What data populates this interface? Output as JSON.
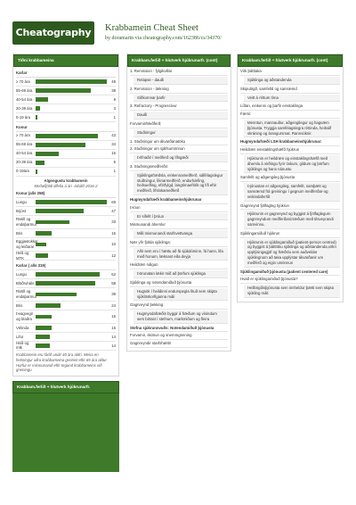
{
  "header": {
    "logo": "Cheatography",
    "title": "Krabbamein Cheat Sheet",
    "by": "by",
    "author": "doramarin",
    "via": "via",
    "url": "cheatography.com/162386/cs/34370/"
  },
  "col1": {
    "box1": {
      "head": "Tíðni krabbameina",
      "konur_title": "Karlar",
      "karlar": [
        {
          "label": "≥ 70 ára",
          "value": 49,
          "frac": 1.0
        },
        {
          "label": "55-69 ára",
          "value": 38,
          "frac": 0.78
        },
        {
          "label": "40-54 ára",
          "value": 9,
          "frac": 0.18
        },
        {
          "label": "20-39 ára",
          "value": 3,
          "frac": 0.06
        },
        {
          "label": "0-19 ára",
          "value": 1,
          "frac": 0.02
        }
      ],
      "konur_label": "Konur",
      "konur": [
        {
          "label": "≥ 70 ára",
          "value": 43,
          "frac": 0.88
        },
        {
          "label": "55-69 ára",
          "value": 34,
          "frac": 0.7
        },
        {
          "label": "40-54 ára",
          "value": 16,
          "frac": 0.33
        },
        {
          "label": "20-39 ára",
          "value": 6,
          "frac": 0.12
        },
        {
          "label": "0-19ára",
          "value": 1,
          "frac": 0.02
        }
      ],
      "algengustu": "Algengustu krabbamein",
      "algengustu_note": "Meðalfjöldi tilfella á ári -árbilið 2016-2",
      "konur_sub": "Konur (alls 258)",
      "konur_types": [
        {
          "label": "Lungu",
          "value": 69,
          "frac": 1.0,
          "tall": false
        },
        {
          "label": "Brjóst",
          "value": 47,
          "frac": 0.68,
          "tall": false
        },
        {
          "label": "Ristill og endaþarmur",
          "value": 33,
          "frac": 0.48,
          "tall": true
        },
        {
          "label": "Bris",
          "value": 15,
          "frac": 0.22,
          "tall": false
        },
        {
          "label": "Eggjastokkar og leiðarar",
          "value": 10,
          "frac": 0.15,
          "tall": true
        },
        {
          "label": "Heili og MTK",
          "value": 12,
          "frac": 0.17,
          "tall": false
        }
      ],
      "karlar_sub": "Karlar ( alls 319)",
      "karlar_types": [
        {
          "label": "Lungu",
          "value": 62,
          "frac": 0.9,
          "tall": false
        },
        {
          "label": "Blöðruháls",
          "value": 58,
          "frac": 0.84,
          "tall": false
        },
        {
          "label": "Ristill og endaþarmur",
          "value": 39,
          "frac": 0.57,
          "tall": true
        },
        {
          "label": "Bris",
          "value": 24,
          "frac": 0.35,
          "tall": false
        },
        {
          "label": "Þvagvegir og blaðra",
          "value": 16,
          "frac": 0.23,
          "tall": true
        },
        {
          "label": "Vélinda",
          "value": 15,
          "frac": 0.22,
          "tall": false
        },
        {
          "label": "Lifur",
          "value": 14,
          "frac": 0.2,
          "tall": false
        },
        {
          "label": "Heili og mtk",
          "value": 14,
          "frac": 0.2,
          "tall": false
        }
      ],
      "footnote": "Krabbamein eru fátíð undir 40 ára aldri. Meira en helmingur allra krabbameina greinist eftir 65 ára aldur. Horfur er mismunandi eftir tegund krabbameins við greiningu"
    },
    "box2": {
      "head": "Krabbam.ferlið + hlutverk hjúkrunarfr."
    }
  },
  "col2": {
    "head": "Krabbam.ferlið + hlutverk hjúkrunarfr. (cont)",
    "items": [
      {
        "t": "1. Remission - fylgikvillar",
        "k": "line"
      },
      {
        "t": "Relapse - dauði",
        "k": "ind"
      },
      {
        "t": "2. Remission - lækning",
        "k": "line"
      },
      {
        "t": "Síðkomnar þarfir",
        "k": "ind"
      },
      {
        "t": "3. Refractory - Progressívur",
        "k": "line"
      },
      {
        "t": "Dauði",
        "k": "ind"
      },
      {
        "t": "Forvarnir/Meðferð;",
        "k": "line"
      },
      {
        "t": "Stuðningur",
        "k": "ind"
      },
      {
        "t": "1. Stuðningur um ákvarðanatöku",
        "k": "line"
      },
      {
        "t": "2. Stuðningur um sjálfsumönnun",
        "k": "line"
      },
      {
        "t": "Þrifnaðir í meðferð og lífsgæði",
        "k": "ind"
      },
      {
        "t": "3. Stuðningsmeðferðir:",
        "k": "line"
      },
      {
        "t": "Sjúklingafræðsla, einkennameðferð, sálfélagslegur stuðningur, líknarmeðferð, endurhæfing, heilsuefling, eftirfylgd, langtímaeftirlit og lífi eftir meðferð, lífslokameðferð",
        "k": "ind"
      },
      {
        "t": "Hugmyndafræði krabbameinshjúkrunar",
        "k": "bold"
      },
      {
        "t": "Þróun",
        "k": "line"
      },
      {
        "t": "Er sífellt í þróun",
        "k": "ind"
      },
      {
        "t": "Mismunandi áherslur",
        "k": "line"
      },
      {
        "t": "Milli mismunandi starfsvettvanga",
        "k": "ind"
      },
      {
        "t": "Nær yfir fjölda sjúklinga:",
        "k": "line"
      },
      {
        "t": "Allir sem eru í hættu að fá sjúkdóminn, fá hann, lifa með honum, læknast eða deyja",
        "k": "ind"
      },
      {
        "t": "Heildræn nálgun",
        "k": "line"
      },
      {
        "t": "Þörunatan lækir mið að þörfum sjúklinga",
        "k": "ind"
      },
      {
        "t": "Sjúklinga og notendamiðuð þjónusta",
        "k": "line"
      },
      {
        "t": "Hugsök í heildinni endurspegla lítuð sem skipta sjúklöskorfiganna máli",
        "k": "ind"
      },
      {
        "t": "Gagnreynd þekking",
        "k": "line"
      },
      {
        "t": "Hugmyndafræðin byggir á fræðum og vísindum sem birtast í stefnum, markmiðum og fleira",
        "k": "ind"
      },
      {
        "t": "Stefna sjúkrunnvuðs: Notendamiðuð þjónusta",
        "k": "bold"
      },
      {
        "t": "Forvarnir, skimun og snemmgreining",
        "k": "line"
      },
      {
        "t": "Gagnreyndir starfshættir",
        "k": "line"
      }
    ]
  },
  "col3": {
    "head": "Krabbam.ferlið + hlutverk hjúkrunarfr. (cont)",
    "items": [
      {
        "t": "Virk þátttaka",
        "k": "line"
      },
      {
        "t": "Sjúklinga og aðstandenda",
        "k": "ind"
      },
      {
        "t": "Skipulögð, samfelld og samræmd",
        "k": "line"
      },
      {
        "t": "Veitt á réttum tíma",
        "k": "ind"
      },
      {
        "t": "Líðan, einkenni og þarfir einstaklinga",
        "k": "line"
      },
      {
        "t": "Færni:",
        "k": "line"
      },
      {
        "t": "Menntun, mannauður, aðgengilegur og hagvæm þjónusta. Tryggja samfélagslegra réttinda, heilsúlf skráning og árangursmat. Rannsóknir.",
        "k": "ind"
      },
      {
        "t": "Hugmyndafræði LSH krabbameinshjúkrunar:",
        "k": "bold"
      },
      {
        "t": "Heildræn einstaklingshæfð hjúkrun",
        "k": "line"
      },
      {
        "t": "Hjúkrunin er heildræn og einstaklingshæfð með áherslu á virðingu fyrir óskum, gildum og þörfum sjúklings og hans nánustu",
        "k": "ind"
      },
      {
        "t": "Samfellt og aðgengileg þjónusta",
        "k": "line"
      },
      {
        "t": "Þjónustan er aðgengileg, samfellt, samþætt og samræmd frá greiningu í gegnum meðferðar-og veikindaferlið",
        "k": "ind"
      },
      {
        "t": "Gagnreynd fjölfagleg hjúkrun",
        "k": "line"
      },
      {
        "t": "Hjúkrunin er gagnreynd og byggist á fjölfaglegum gagnreyndum meðferðarúrræðum með tilsveyrandi samvinnu.",
        "k": "ind"
      },
      {
        "t": "Sjúklingamiðuð hjúkrun",
        "k": "line"
      },
      {
        "t": "Hjúkrunin er sjúklingamiðuð (patient-person centred) og byggist á þátttöku sjúklinga og aðstandenda,virkri upplýsingagjöf og fræðslu sem auðveldar sjúklingnum að taka upplýstar ákvarðanir um meðferð og eigin umönnun",
        "k": "ind"
      },
      {
        "t": "Sjúklingamiðuð þjónusta (patient centered care)",
        "k": "bold"
      },
      {
        "t": "Hvað er sjúklingamiðuð þjónusta?",
        "k": "line"
      },
      {
        "t": "Heilbrigðisþjónusta sem innheldur þætti sem skipta sjúkling máli",
        "k": "ind"
      }
    ]
  }
}
